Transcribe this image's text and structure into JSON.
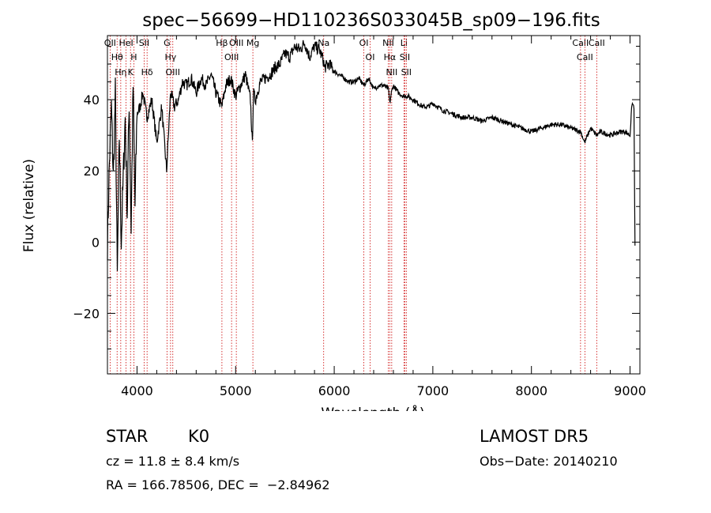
{
  "chart_data": {
    "type": "line",
    "title": "spec−56699−HD110236S033045B_sp09−196.fits",
    "xlabel": "Wavelength (Å)",
    "ylabel": "Flux (relative)",
    "xlim": [
      3700,
      9100
    ],
    "ylim": [
      -37,
      58
    ],
    "xticks": [
      4000,
      5000,
      6000,
      7000,
      8000,
      9000
    ],
    "yticks": [
      -20,
      0,
      20,
      40
    ],
    "grid": false,
    "series": [
      {
        "x": [
          3700,
          3720,
          3740,
          3760,
          3780,
          3800,
          3820,
          3840,
          3860,
          3880,
          3900,
          3920,
          3940,
          3960,
          3980,
          4000,
          4030,
          4060,
          4100,
          4150,
          4200,
          4250,
          4300,
          4340,
          4380,
          4420,
          4460,
          4500,
          4550,
          4600,
          4650,
          4700,
          4750,
          4800,
          4860,
          4900,
          4950,
          5000,
          5050,
          5100,
          5150,
          5170,
          5180,
          5200,
          5250,
          5300,
          5350,
          5400,
          5450,
          5500,
          5550,
          5600,
          5650,
          5700,
          5750,
          5800,
          5850,
          5890,
          5900,
          5950,
          6000,
          6050,
          6100,
          6150,
          6200,
          6250,
          6300,
          6350,
          6400,
          6450,
          6500,
          6550,
          6563,
          6580,
          6600,
          6650,
          6700,
          6750,
          6800,
          6850,
          6900,
          6950,
          7000,
          7100,
          7200,
          7300,
          7400,
          7500,
          7600,
          7700,
          7800,
          7900,
          8000,
          8100,
          8200,
          8300,
          8400,
          8500,
          8540,
          8600,
          8660,
          8700,
          8800,
          8900,
          8950,
          9000,
          9020,
          9040,
          9050
        ],
        "y": [
          0,
          22,
          38,
          18,
          42,
          -10,
          30,
          0,
          18,
          35,
          8,
          40,
          4,
          44,
          10,
          36,
          38,
          42,
          35,
          40,
          28,
          38,
          20,
          42,
          38,
          40,
          45,
          44,
          46,
          42,
          46,
          44,
          47,
          42,
          38,
          44,
          46,
          41,
          44,
          47,
          40,
          27,
          42,
          40,
          45,
          46,
          47,
          49,
          50,
          53,
          52,
          55,
          54,
          56,
          52,
          55,
          54,
          51,
          49,
          50,
          48,
          47,
          46,
          45,
          45,
          46,
          44,
          46,
          43,
          44,
          44,
          43,
          39,
          42,
          44,
          42,
          41,
          41,
          40,
          39,
          38,
          38,
          39,
          37,
          36,
          35,
          35,
          34,
          35,
          34,
          33,
          32,
          31,
          32,
          33,
          33,
          32,
          31,
          28,
          32,
          30,
          31,
          30,
          31,
          31,
          30,
          39,
          38,
          -1
        ]
      }
    ],
    "lines": [
      {
        "wl": 3727,
        "label": "OII"
      },
      {
        "wl": 3798,
        "label": "Hθ"
      },
      {
        "wl": 3835,
        "label": "Hη"
      },
      {
        "wl": 3889,
        "label": "HeI"
      },
      {
        "wl": 3934,
        "label": "K"
      },
      {
        "wl": 3968,
        "label": "H"
      },
      {
        "wl": 4072,
        "label": "SII"
      },
      {
        "wl": 4102,
        "label": "Hδ"
      },
      {
        "wl": 4304,
        "label": "G"
      },
      {
        "wl": 4340,
        "label": "Hγ"
      },
      {
        "wl": 4363,
        "label": "OIII"
      },
      {
        "wl": 4861,
        "label": "Hβ"
      },
      {
        "wl": 4959,
        "label": "OIII"
      },
      {
        "wl": 5007,
        "label": "OIII"
      },
      {
        "wl": 5175,
        "label": "Mg"
      },
      {
        "wl": 5893,
        "label": "Na"
      },
      {
        "wl": 6300,
        "label": "OI"
      },
      {
        "wl": 6364,
        "label": "OI"
      },
      {
        "wl": 6548,
        "label": "NII"
      },
      {
        "wl": 6563,
        "label": "Hα"
      },
      {
        "wl": 6583,
        "label": "NII"
      },
      {
        "wl": 6707,
        "label": "Li"
      },
      {
        "wl": 6716,
        "label": "SII"
      },
      {
        "wl": 6731,
        "label": "SII"
      },
      {
        "wl": 8498,
        "label": "CaII"
      },
      {
        "wl": 8542,
        "label": "CaII"
      },
      {
        "wl": 8662,
        "label": "CaII"
      }
    ]
  },
  "info": {
    "class": "STAR",
    "subclass": "K0",
    "survey": "LAMOST DR5",
    "cz": "cz = 11.8 ± 8.4 km/s",
    "obs_date": "Obs−Date: 20140210",
    "coords": "RA = 166.78506, DEC =  −2.84962"
  },
  "colors": {
    "spectrum": "#000000",
    "lines": "#cc0000",
    "axes": "#000000"
  }
}
